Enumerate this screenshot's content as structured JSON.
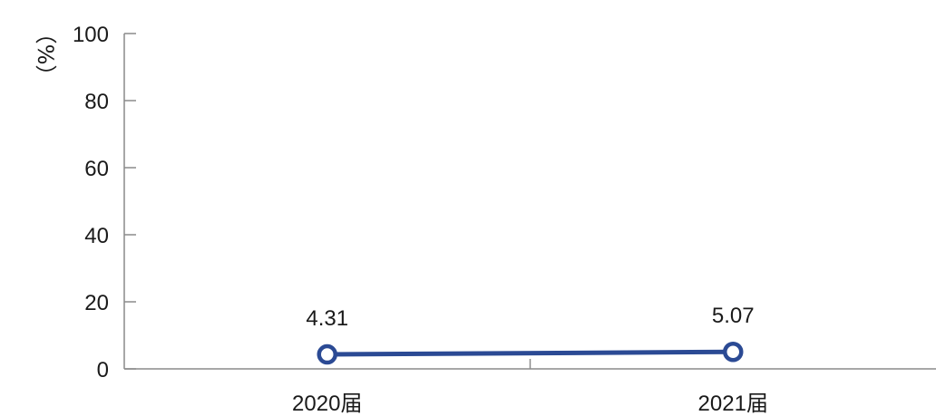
{
  "chart_data": {
    "type": "line",
    "title": "",
    "xlabel": "",
    "ylabel": "（%）",
    "categories": [
      "2020届",
      "2021届"
    ],
    "series": [
      {
        "values": [
          4.31,
          5.07
        ]
      }
    ],
    "data_labels": [
      "4.31",
      "5.07"
    ],
    "y_ticks": [
      "0",
      "20",
      "40",
      "60",
      "80",
      "100"
    ],
    "ylim": [
      0,
      100
    ],
    "grid": false,
    "legend": "none",
    "colors": {
      "line": "#2b4a94",
      "marker_fill": "#ffffff",
      "axis": "#8a8a8a"
    }
  }
}
